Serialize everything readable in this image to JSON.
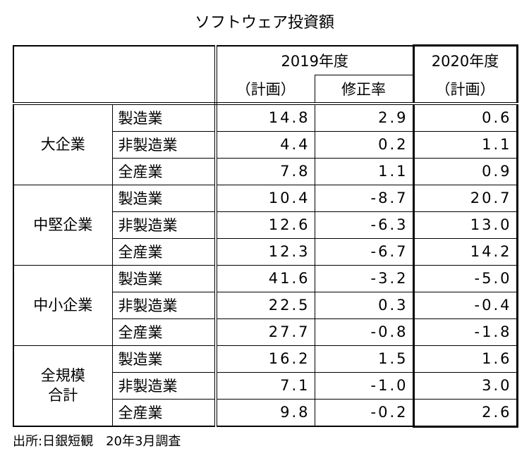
{
  "title": "ソフトウェア投資額",
  "table": {
    "header": {
      "year2019": "2019年度",
      "year2020": "2020年度",
      "plan2019": "（計画）",
      "revision": "修正率",
      "plan2020": "（計画）"
    },
    "groups": [
      {
        "name": [
          "大企業"
        ],
        "rows": [
          [
            "製造業",
            "14.8",
            "2.9",
            "0.6"
          ],
          [
            "非製造業",
            "4.4",
            "0.2",
            "1.1"
          ],
          [
            "全産業",
            "7.8",
            "1.1",
            "0.9"
          ]
        ]
      },
      {
        "name": [
          "中堅企業"
        ],
        "rows": [
          [
            "製造業",
            "10.4",
            "-8.7",
            "20.7"
          ],
          [
            "非製造業",
            "12.6",
            "-6.3",
            "13.0"
          ],
          [
            "全産業",
            "12.3",
            "-6.7",
            "14.2"
          ]
        ]
      },
      {
        "name": [
          "中小企業"
        ],
        "rows": [
          [
            "製造業",
            "41.6",
            "-3.2",
            "-5.0"
          ],
          [
            "非製造業",
            "22.5",
            "0.3",
            "-0.4"
          ],
          [
            "全産業",
            "27.7",
            "-0.8",
            "-1.8"
          ]
        ]
      },
      {
        "name": [
          "全規模",
          "合計"
        ],
        "rows": [
          [
            "製造業",
            "16.2",
            "1.5",
            "1.6"
          ],
          [
            "非製造業",
            "7.1",
            "-1.0",
            "3.0"
          ],
          [
            "全産業",
            "9.8",
            "-0.2",
            "2.6"
          ]
        ]
      }
    ]
  },
  "footer": "出所:日銀短観　20年3月調査"
}
